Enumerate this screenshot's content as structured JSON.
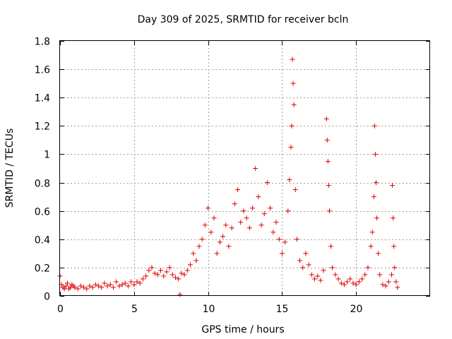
{
  "chart_data": {
    "type": "scatter",
    "title": "Day 309 of 2025, SRMTID for receiver bcln",
    "xlabel": "GPS time / hours",
    "ylabel": "SRMTID / TECUs",
    "xlim": [
      0,
      25
    ],
    "ylim": [
      0,
      1.8
    ],
    "xticks": [
      0,
      5,
      10,
      15,
      20
    ],
    "xtick_labels": [
      "0",
      "5",
      "10",
      "15",
      "20"
    ],
    "yticks": [
      0,
      0.2,
      0.4,
      0.6,
      0.8,
      1.0,
      1.2,
      1.4,
      1.6,
      1.8
    ],
    "ytick_labels": [
      "0",
      "0.2",
      "0.4",
      "0.6",
      "0.8",
      "1",
      "1.2",
      "1.4",
      "1.6",
      "1.8"
    ],
    "grid": true,
    "marker": "+",
    "color": "#e00000",
    "series": [
      {
        "name": "SRMTID",
        "x": [
          0.0,
          0.1,
          0.2,
          0.3,
          0.4,
          0.5,
          0.6,
          0.7,
          0.8,
          0.9,
          1.0,
          1.2,
          1.4,
          1.6,
          1.8,
          2.0,
          2.2,
          2.4,
          2.6,
          2.8,
          3.0,
          3.2,
          3.4,
          3.6,
          3.8,
          4.0,
          4.2,
          4.4,
          4.6,
          4.8,
          5.0,
          5.2,
          5.4,
          5.6,
          5.8,
          6.0,
          6.2,
          6.4,
          6.6,
          6.8,
          7.0,
          7.2,
          7.4,
          7.6,
          7.8,
          8.0,
          8.2,
          8.4,
          8.6,
          8.8,
          9.0,
          9.2,
          9.4,
          9.6,
          9.8,
          10.0,
          10.2,
          10.4,
          10.6,
          10.8,
          11.0,
          11.2,
          11.4,
          11.6,
          11.8,
          12.0,
          12.2,
          12.4,
          12.6,
          12.8,
          13.0,
          13.2,
          13.4,
          13.6,
          13.8,
          14.0,
          14.2,
          14.4,
          14.6,
          14.8,
          15.0,
          15.2,
          15.4,
          15.5,
          15.6,
          15.65,
          15.7,
          15.75,
          15.8,
          15.9,
          16.0,
          16.2,
          16.4,
          16.6,
          16.8,
          17.0,
          17.2,
          17.4,
          17.6,
          17.8,
          18.0,
          18.05,
          18.1,
          18.15,
          18.2,
          18.3,
          18.4,
          18.6,
          18.8,
          19.0,
          19.2,
          19.4,
          19.6,
          19.8,
          20.0,
          20.2,
          20.4,
          20.6,
          20.8,
          21.0,
          21.1,
          21.2,
          21.25,
          21.3,
          21.35,
          21.4,
          21.5,
          21.6,
          21.8,
          22.0,
          22.2,
          22.4,
          22.45,
          22.5,
          22.55,
          22.6,
          22.7,
          22.8,
          8.1
        ],
        "y": [
          0.14,
          0.08,
          0.06,
          0.05,
          0.07,
          0.09,
          0.05,
          0.06,
          0.08,
          0.07,
          0.06,
          0.05,
          0.07,
          0.06,
          0.05,
          0.07,
          0.06,
          0.08,
          0.07,
          0.06,
          0.09,
          0.07,
          0.08,
          0.06,
          0.1,
          0.07,
          0.08,
          0.09,
          0.07,
          0.1,
          0.08,
          0.1,
          0.09,
          0.12,
          0.14,
          0.18,
          0.2,
          0.16,
          0.15,
          0.18,
          0.14,
          0.17,
          0.2,
          0.15,
          0.13,
          0.12,
          0.16,
          0.15,
          0.18,
          0.22,
          0.3,
          0.25,
          0.35,
          0.4,
          0.5,
          0.62,
          0.45,
          0.55,
          0.3,
          0.38,
          0.42,
          0.5,
          0.35,
          0.48,
          0.65,
          0.75,
          0.52,
          0.6,
          0.55,
          0.48,
          0.62,
          0.9,
          0.7,
          0.5,
          0.58,
          0.8,
          0.62,
          0.45,
          0.52,
          0.4,
          0.3,
          0.38,
          0.6,
          0.82,
          1.05,
          1.2,
          1.67,
          1.5,
          1.35,
          0.75,
          0.4,
          0.25,
          0.2,
          0.3,
          0.22,
          0.15,
          0.12,
          0.14,
          0.11,
          0.18,
          1.25,
          1.1,
          0.95,
          0.78,
          0.6,
          0.35,
          0.2,
          0.15,
          0.12,
          0.09,
          0.08,
          0.1,
          0.12,
          0.09,
          0.08,
          0.1,
          0.12,
          0.15,
          0.2,
          0.35,
          0.45,
          0.7,
          1.2,
          1.0,
          0.8,
          0.55,
          0.3,
          0.15,
          0.08,
          0.07,
          0.1,
          0.15,
          0.78,
          0.55,
          0.35,
          0.2,
          0.1,
          0.06,
          0.01
        ]
      }
    ]
  }
}
